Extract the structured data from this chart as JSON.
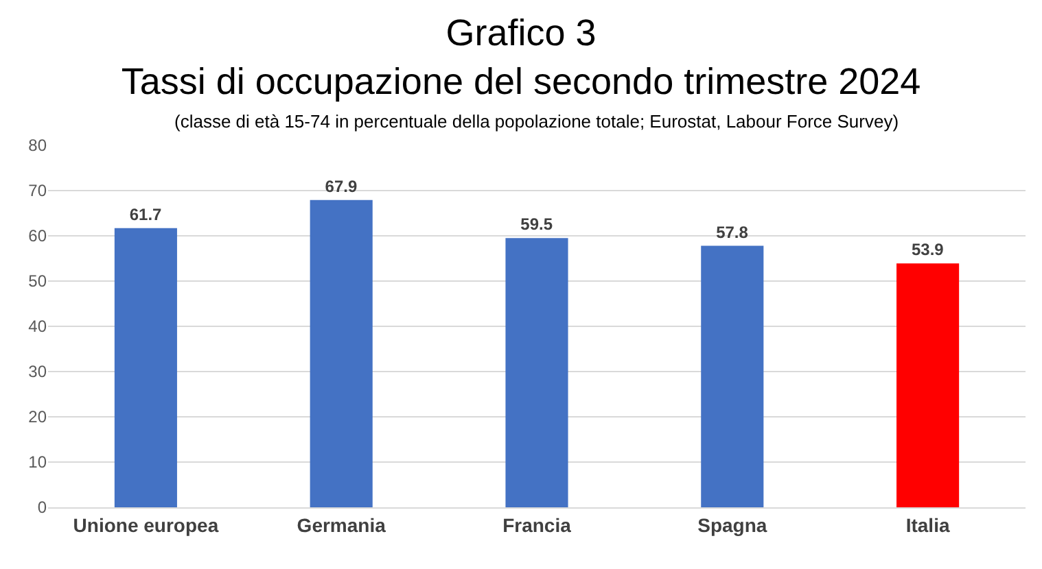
{
  "chart_data": {
    "type": "bar",
    "title": "Grafico 3\nTassi di occupazione del secondo trimestre 2024",
    "subtitle": "(classe di età 15-74 in percentuale della popolazione totale; Eurostat, Labour Force Survey)",
    "categories": [
      "Unione europea",
      "Germania",
      "Francia",
      "Spagna",
      "Italia"
    ],
    "values": [
      61.7,
      67.9,
      59.5,
      57.8,
      53.9
    ],
    "colors": [
      "#4472c4",
      "#4472c4",
      "#4472c4",
      "#4472c4",
      "#ff0000"
    ],
    "ylim": [
      0,
      80
    ],
    "yticks": [
      0,
      10,
      20,
      30,
      40,
      50,
      60,
      70,
      80
    ],
    "grid": "y",
    "data_labels": true
  }
}
